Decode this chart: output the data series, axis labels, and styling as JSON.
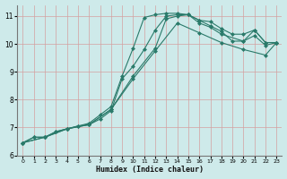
{
  "xlabel": "Humidex (Indice chaleur)",
  "ylabel": "",
  "bg_color": "#ceeaea",
  "grid_color": "#d4a0a0",
  "line_color": "#2a7a6a",
  "xlim": [
    -0.5,
    23.5
  ],
  "ylim": [
    6.0,
    11.4
  ],
  "xticks": [
    0,
    1,
    2,
    3,
    4,
    5,
    6,
    7,
    8,
    9,
    10,
    11,
    12,
    13,
    14,
    15,
    16,
    17,
    18,
    19,
    20,
    21,
    22,
    23
  ],
  "yticks": [
    6,
    7,
    8,
    9,
    10,
    11
  ],
  "line1_x": [
    0,
    1,
    2,
    3,
    4,
    5,
    6,
    7,
    8,
    9,
    10,
    11,
    12,
    13,
    14,
    15,
    16,
    17,
    18,
    19,
    20,
    21,
    22,
    23
  ],
  "line1_y": [
    6.45,
    6.65,
    6.65,
    6.85,
    6.95,
    7.05,
    7.15,
    7.45,
    7.75,
    8.85,
    9.85,
    10.95,
    11.05,
    11.1,
    11.1,
    11.05,
    10.85,
    10.8,
    10.55,
    10.35,
    10.35,
    10.5,
    10.05,
    10.05
  ],
  "line2_x": [
    0,
    1,
    2,
    3,
    4,
    5,
    6,
    7,
    8,
    9,
    10,
    11,
    12,
    13,
    14,
    15,
    16,
    17,
    18,
    19,
    20,
    21,
    22,
    23
  ],
  "line2_y": [
    6.45,
    6.65,
    6.65,
    6.85,
    6.95,
    7.05,
    7.1,
    7.3,
    7.6,
    8.75,
    9.2,
    9.8,
    10.5,
    11.0,
    11.05,
    11.05,
    10.85,
    10.65,
    10.45,
    10.1,
    10.1,
    10.3,
    9.95,
    10.05
  ],
  "line3_x": [
    0,
    2,
    4,
    6,
    8,
    10,
    12,
    13,
    14,
    15,
    16,
    17,
    18,
    20,
    21,
    22,
    23
  ],
  "line3_y": [
    6.45,
    6.65,
    6.95,
    7.1,
    7.65,
    8.85,
    9.85,
    10.9,
    11.0,
    11.05,
    10.75,
    10.6,
    10.35,
    10.1,
    10.5,
    10.05,
    10.05
  ],
  "line4_x": [
    0,
    2,
    4,
    6,
    8,
    10,
    12,
    14,
    16,
    18,
    20,
    22,
    23
  ],
  "line4_y": [
    6.45,
    6.65,
    6.95,
    7.1,
    7.65,
    8.75,
    9.75,
    10.75,
    10.4,
    10.05,
    9.8,
    9.6,
    10.05
  ],
  "marker": "D",
  "markersize": 2,
  "linewidth": 0.8
}
